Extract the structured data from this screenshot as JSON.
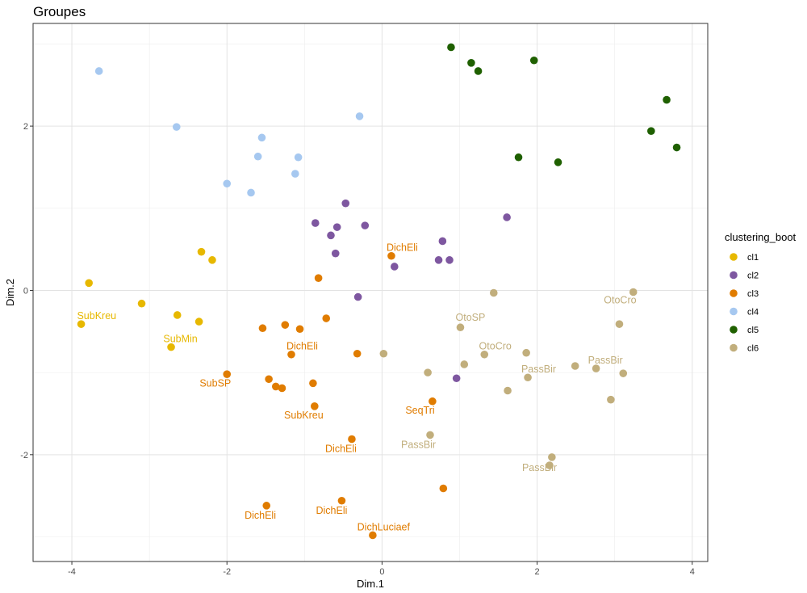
{
  "chart_data": {
    "type": "scatter",
    "title": "Groupes",
    "xlabel": "Dim.1",
    "ylabel": "Dim.2",
    "xlim": [
      -4.5,
      4.2
    ],
    "ylim": [
      -3.3,
      3.25
    ],
    "x_ticks": [
      -4,
      -2,
      0,
      2,
      4
    ],
    "y_ticks": [
      -2,
      0,
      2
    ],
    "x_tick_labels": [
      "-4",
      "-2",
      "0",
      "2",
      "4"
    ],
    "y_tick_labels": [
      "-2",
      "0",
      "2"
    ],
    "grid": true,
    "legend": {
      "title": "clustering_boot",
      "position": "right"
    },
    "series": [
      {
        "name": "cl1",
        "color": "#E7B800",
        "points": [
          [
            -3.88,
            -0.41
          ],
          [
            -3.78,
            0.09
          ],
          [
            -3.1,
            -0.16
          ],
          [
            -2.72,
            -0.69
          ],
          [
            -2.64,
            -0.3
          ],
          [
            -2.36,
            -0.38
          ],
          [
            -2.33,
            0.47
          ],
          [
            -2.19,
            0.37
          ]
        ]
      },
      {
        "name": "cl2",
        "color": "#7E57A0",
        "points": [
          [
            -0.86,
            0.82
          ],
          [
            -0.66,
            0.67
          ],
          [
            -0.58,
            0.77
          ],
          [
            -0.47,
            1.06
          ],
          [
            -0.6,
            0.45
          ],
          [
            -0.22,
            0.79
          ],
          [
            -0.31,
            -0.08
          ],
          [
            0.16,
            0.29
          ],
          [
            0.73,
            0.37
          ],
          [
            0.78,
            0.6
          ],
          [
            0.87,
            0.37
          ],
          [
            1.61,
            0.89
          ],
          [
            0.96,
            -1.07
          ]
        ]
      },
      {
        "name": "cl3",
        "color": "#E07C00",
        "points": [
          [
            0.12,
            0.42
          ],
          [
            -0.82,
            0.15
          ],
          [
            -0.72,
            -0.34
          ],
          [
            -1.06,
            -0.47
          ],
          [
            -1.25,
            -0.42
          ],
          [
            -1.54,
            -0.46
          ],
          [
            -1.17,
            -0.78
          ],
          [
            -0.32,
            -0.77
          ],
          [
            -2.0,
            -1.02
          ],
          [
            -1.46,
            -1.08
          ],
          [
            -1.37,
            -1.17
          ],
          [
            -1.29,
            -1.19
          ],
          [
            -0.89,
            -1.13
          ],
          [
            -0.87,
            -1.41
          ],
          [
            0.65,
            -1.35
          ],
          [
            -0.39,
            -1.81
          ],
          [
            -1.49,
            -2.62
          ],
          [
            -0.52,
            -2.56
          ],
          [
            0.79,
            -2.41
          ],
          [
            -0.12,
            -2.98
          ]
        ]
      },
      {
        "name": "cl4",
        "color": "#A6C8F0",
        "points": [
          [
            -3.65,
            2.67
          ],
          [
            -2.65,
            1.99
          ],
          [
            -0.29,
            2.12
          ],
          [
            -1.55,
            1.86
          ],
          [
            -1.6,
            1.63
          ],
          [
            -1.08,
            1.62
          ],
          [
            -1.12,
            1.42
          ],
          [
            -2.0,
            1.3
          ],
          [
            -1.69,
            1.19
          ]
        ]
      },
      {
        "name": "cl5",
        "color": "#1F6000",
        "points": [
          [
            0.89,
            2.96
          ],
          [
            1.15,
            2.77
          ],
          [
            1.24,
            2.67
          ],
          [
            1.96,
            2.8
          ],
          [
            3.67,
            2.32
          ],
          [
            3.47,
            1.94
          ],
          [
            3.8,
            1.74
          ],
          [
            1.76,
            1.62
          ],
          [
            2.27,
            1.56
          ]
        ]
      },
      {
        "name": "cl6",
        "color": "#C1AE7C",
        "points": [
          [
            1.44,
            -0.03
          ],
          [
            3.24,
            -0.02
          ],
          [
            3.06,
            -0.41
          ],
          [
            1.01,
            -0.45
          ],
          [
            0.02,
            -0.77
          ],
          [
            1.06,
            -0.9
          ],
          [
            1.32,
            -0.78
          ],
          [
            1.86,
            -0.76
          ],
          [
            0.59,
            -1.0
          ],
          [
            1.88,
            -1.06
          ],
          [
            2.49,
            -0.92
          ],
          [
            2.76,
            -0.95
          ],
          [
            3.11,
            -1.01
          ],
          [
            1.62,
            -1.22
          ],
          [
            2.95,
            -1.33
          ],
          [
            0.62,
            -1.76
          ],
          [
            2.19,
            -2.03
          ],
          [
            2.16,
            -2.13
          ]
        ]
      }
    ],
    "annotations": [
      {
        "text": "SubKreu",
        "series": "cl1",
        "x": -3.68,
        "y": -0.31
      },
      {
        "text": "SubMin",
        "series": "cl1",
        "x": -2.6,
        "y": -0.59
      },
      {
        "text": "DichEli",
        "series": "cl3",
        "x": 0.26,
        "y": 0.52
      },
      {
        "text": "DichEli",
        "series": "cl3",
        "x": -1.03,
        "y": -0.68
      },
      {
        "text": "SubSP",
        "series": "cl3",
        "x": -2.15,
        "y": -1.13
      },
      {
        "text": "SubKreu",
        "series": "cl3",
        "x": -1.01,
        "y": -1.52
      },
      {
        "text": "SeqTri",
        "series": "cl3",
        "x": 0.49,
        "y": -1.46
      },
      {
        "text": "DichEli",
        "series": "cl3",
        "x": -0.53,
        "y": -1.93
      },
      {
        "text": "DichEli",
        "series": "cl3",
        "x": -1.57,
        "y": -2.74
      },
      {
        "text": "DichEli",
        "series": "cl3",
        "x": -0.65,
        "y": -2.68
      },
      {
        "text": "DichLuciaef",
        "series": "cl3",
        "x": 0.02,
        "y": -2.88
      },
      {
        "text": "OtoCro",
        "series": "cl6",
        "x": 3.07,
        "y": -0.12
      },
      {
        "text": "OtoSP",
        "series": "cl6",
        "x": 1.14,
        "y": -0.33
      },
      {
        "text": "OtoCro",
        "series": "cl6",
        "x": 1.46,
        "y": -0.68
      },
      {
        "text": "PassBir",
        "series": "cl6",
        "x": 2.88,
        "y": -0.85
      },
      {
        "text": "PassBir",
        "series": "cl6",
        "x": 2.02,
        "y": -0.96
      },
      {
        "text": "PassBir",
        "series": "cl6",
        "x": 0.47,
        "y": -1.88
      },
      {
        "text": "PassBir",
        "series": "cl6",
        "x": 2.03,
        "y": -2.16
      }
    ]
  }
}
